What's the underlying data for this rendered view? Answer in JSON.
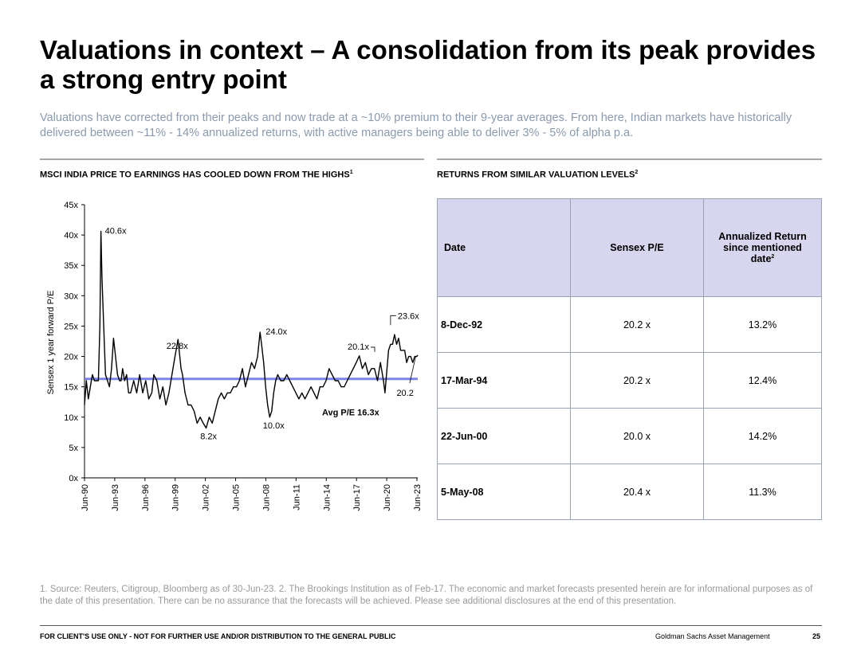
{
  "title": "Valuations in context – A consolidation from its peak provides a strong entry point",
  "subtitle": "Valuations have corrected from their peaks and now trade at a ~10% premium to their 9-year averages. From here, Indian markets have historically delivered  between ~11% - 14% annualized returns, with active managers being able to deliver 3% - 5% of alpha p.a.",
  "left_section": {
    "heading": "MSCI INDIA PRICE TO EARNINGS HAS COOLED DOWN FROM THE HIGHS",
    "footnote_ref": "1"
  },
  "right_section": {
    "heading": "RETURNS FROM SIMILAR VALUATION LEVELS",
    "footnote_ref": "2"
  },
  "chart_data": {
    "type": "line",
    "ylabel": "Sensex 1 year forward P/E",
    "xlabel": "",
    "ylim": [
      0,
      45
    ],
    "yticks": [
      "0x",
      "5x",
      "10x",
      "15x",
      "20x",
      "25x",
      "30x",
      "35x",
      "40x",
      "45x"
    ],
    "xticks": [
      "Jun-90",
      "Jun-93",
      "Jun-96",
      "Jun-99",
      "Jun-02",
      "Jun-05",
      "Jun-08",
      "Jun-11",
      "Jun-14",
      "Jun-17",
      "Jun-20",
      "Jun-23"
    ],
    "xrange": [
      1990.42,
      2023.5
    ],
    "average": {
      "value": 16.3,
      "label": "Avg  P/E 16.3x",
      "color": "#7b84e6"
    },
    "series": [
      {
        "name": "Sensex 1 year forward P/E",
        "color": "#000000",
        "x": [
          1990.42,
          1990.6,
          1990.8,
          1991.0,
          1991.2,
          1991.4,
          1991.6,
          1991.8,
          1991.95,
          1992.05,
          1992.15,
          1992.3,
          1992.5,
          1992.7,
          1992.9,
          1993.1,
          1993.3,
          1993.5,
          1993.7,
          1993.9,
          1994.05,
          1994.2,
          1994.4,
          1994.6,
          1994.8,
          1995.0,
          1995.3,
          1995.6,
          1995.9,
          1996.2,
          1996.5,
          1996.8,
          1997.1,
          1997.3,
          1997.6,
          1997.9,
          1998.2,
          1998.5,
          1998.8,
          1999.1,
          1999.4,
          1999.7,
          2000.0,
          2000.15,
          2000.4,
          2000.7,
          2001.0,
          2001.3,
          2001.6,
          2001.9,
          2002.2,
          2002.5,
          2002.8,
          2003.1,
          2003.4,
          2003.7,
          2004.0,
          2004.3,
          2004.6,
          2004.9,
          2005.2,
          2005.5,
          2005.8,
          2006.1,
          2006.4,
          2006.7,
          2007.0,
          2007.3,
          2007.6,
          2007.85,
          2008.0,
          2008.2,
          2008.4,
          2008.6,
          2008.8,
          2009.0,
          2009.2,
          2009.4,
          2009.6,
          2009.9,
          2010.2,
          2010.5,
          2010.8,
          2011.1,
          2011.4,
          2011.7,
          2012.0,
          2012.3,
          2012.6,
          2012.9,
          2013.2,
          2013.5,
          2013.8,
          2014.1,
          2014.4,
          2014.7,
          2015.0,
          2015.3,
          2015.6,
          2015.9,
          2016.2,
          2016.5,
          2016.8,
          2017.1,
          2017.4,
          2017.7,
          2018.0,
          2018.3,
          2018.6,
          2018.9,
          2019.2,
          2019.5,
          2019.8,
          2020.1,
          2020.25,
          2020.4,
          2020.6,
          2020.8,
          2021.0,
          2021.2,
          2021.4,
          2021.6,
          2021.8,
          2022.0,
          2022.2,
          2022.4,
          2022.6,
          2022.8,
          2023.0,
          2023.2,
          2023.4,
          2023.5
        ],
        "y": [
          12,
          16,
          13,
          15,
          17,
          16,
          16,
          16,
          25,
          40.6,
          33,
          26,
          17,
          16,
          15,
          18,
          23,
          20,
          17,
          16,
          16,
          18,
          16,
          17,
          14,
          14,
          16,
          14,
          17,
          14,
          16,
          13,
          14,
          17,
          16,
          13,
          15,
          12,
          14,
          17,
          20,
          22.8,
          18,
          17,
          14,
          12,
          12,
          11,
          9,
          10,
          9,
          8.2,
          10,
          9,
          11,
          13,
          14,
          13,
          14,
          14,
          15,
          15,
          16,
          18,
          15,
          17,
          19,
          18,
          20,
          24.0,
          22,
          19,
          15,
          12,
          10.0,
          11,
          14,
          16,
          17,
          16,
          16,
          17,
          16,
          15,
          14,
          13,
          14,
          13,
          14,
          15,
          14,
          13,
          15,
          15,
          16,
          18,
          17,
          16,
          16,
          15,
          15,
          16,
          17,
          18,
          19,
          20.1,
          18,
          19,
          17,
          18,
          18,
          16,
          19,
          16,
          14,
          17,
          21,
          22,
          22,
          23.6,
          22,
          23,
          21,
          21,
          21,
          19,
          20,
          20,
          19,
          20,
          20,
          20.2
        ]
      }
    ],
    "annotations": [
      "40.6x",
      "22.8x",
      "8.2x",
      "24.0x",
      "10.0x",
      "20.1x",
      "23.6x",
      "20.2"
    ]
  },
  "table": {
    "headers": [
      "Date",
      "Sensex P/E",
      "Annualized Return since mentioned date"
    ],
    "header_footnote": "2",
    "rows": [
      [
        "8-Dec-92",
        "20.2 x",
        "13.2%"
      ],
      [
        "17-Mar-94",
        "20.2 x",
        "12.4%"
      ],
      [
        "22-Jun-00",
        "20.0 x",
        "14.2%"
      ],
      [
        "5-May-08",
        "20.4 x",
        "11.3%"
      ]
    ]
  },
  "footnote": "1. Source: Reuters, Citigroup, Bloomberg as of 30-Jun-23. 2. The Brookings Institution as of Feb-17. The economic and market forecasts presented herein are for informational purposes as of the date of this presentation. There can be no assurance that the forecasts will be achieved.  Please see additional disclosures at the end of this presentation.",
  "footer": {
    "disclaimer": "FOR CLIENT'S USE ONLY - NOT FOR FURTHER USE AND/OR DISTRIBUTION TO THE GENERAL PUBLIC",
    "company": "Goldman Sachs Asset Management",
    "page": "25"
  },
  "colors": {
    "subtitle": "#8a9aae",
    "table_header": "#d7d6ee",
    "average_line": "#7b84e6"
  }
}
